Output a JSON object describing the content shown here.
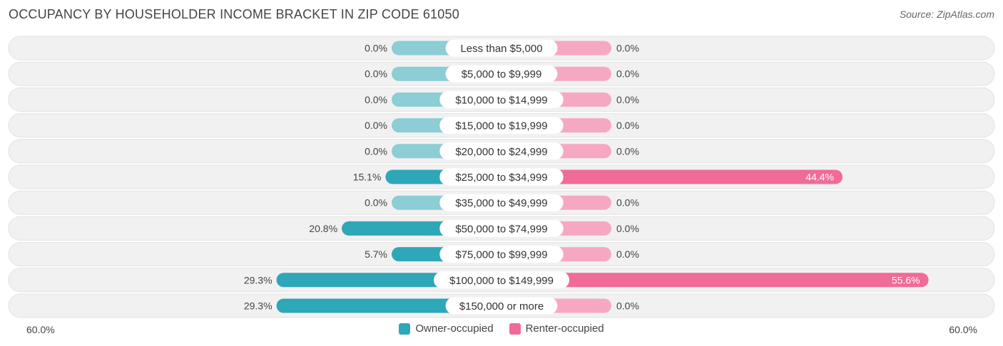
{
  "header": {
    "title": "OCCUPANCY BY HOUSEHOLDER INCOME BRACKET IN ZIP CODE 61050",
    "source": "Source: ZipAtlas.com"
  },
  "colors": {
    "owner": "#2ea7b8",
    "owner_light": "#8ccdd6",
    "renter": "#f06b97",
    "renter_light": "#f6a8c3",
    "row_bg": "#f1f1f1"
  },
  "axis": {
    "left_label": "60.0%",
    "right_label": "60.0%"
  },
  "legend": {
    "owner": "Owner-occupied",
    "renter": "Renter-occupied"
  },
  "chart_data": {
    "type": "bar",
    "orientation": "horizontal-diverging",
    "xlim": [
      -60,
      60
    ],
    "categories": [
      "Less than $5,000",
      "$5,000 to $9,999",
      "$10,000 to $14,999",
      "$15,000 to $19,999",
      "$20,000 to $24,999",
      "$25,000 to $34,999",
      "$35,000 to $49,999",
      "$50,000 to $74,999",
      "$75,000 to $99,999",
      "$100,000 to $149,999",
      "$150,000 or more"
    ],
    "series": [
      {
        "name": "Owner-occupied",
        "values": [
          0.0,
          0.0,
          0.0,
          0.0,
          0.0,
          15.1,
          0.0,
          20.8,
          5.7,
          29.3,
          29.3
        ],
        "labels": [
          "0.0%",
          "0.0%",
          "0.0%",
          "0.0%",
          "0.0%",
          "15.1%",
          "0.0%",
          "20.8%",
          "5.7%",
          "29.3%",
          "29.3%"
        ]
      },
      {
        "name": "Renter-occupied",
        "values": [
          0.0,
          0.0,
          0.0,
          0.0,
          0.0,
          44.4,
          0.0,
          0.0,
          0.0,
          55.6,
          0.0
        ],
        "labels": [
          "0.0%",
          "0.0%",
          "0.0%",
          "0.0%",
          "0.0%",
          "44.4%",
          "0.0%",
          "0.0%",
          "0.0%",
          "55.6%",
          "0.0%"
        ]
      }
    ],
    "legend_position": "bottom"
  }
}
